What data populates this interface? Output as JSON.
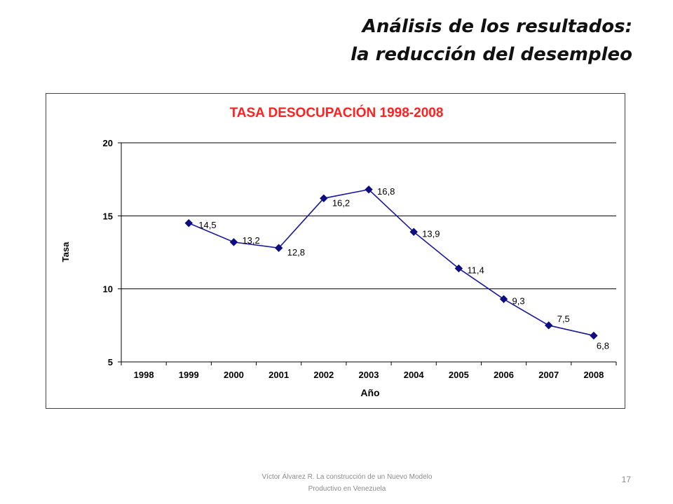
{
  "slide": {
    "title_line1": "Análisis de los resultados:",
    "title_line2": "la reducción del desempleo",
    "footer_line1": "Víctor Álvarez R. La construcción de un Nuevo Modelo",
    "footer_line2": "Productivo en Venezuela",
    "page_number": "17"
  },
  "chart_data": {
    "type": "line",
    "title": "TASA DESOCUPACIÓN 1998-2008",
    "xlabel": "Año",
    "ylabel": "Tasa",
    "categories": [
      "1998",
      "1999",
      "2000",
      "2001",
      "2002",
      "2003",
      "2004",
      "2005",
      "2006",
      "2007",
      "2008"
    ],
    "series": [
      {
        "values": [
          null,
          14.5,
          13.2,
          12.8,
          16.2,
          16.8,
          13.9,
          11.4,
          9.3,
          7.5,
          6.8
        ],
        "labels": [
          "",
          "14,5",
          "13,2",
          "12,8",
          "16,2",
          "16,8",
          "13,9",
          "11,4",
          "9,3",
          "7,5",
          "6,8"
        ]
      }
    ],
    "ylim": [
      5,
      20
    ],
    "yticks": [
      5,
      10,
      15,
      20
    ],
    "grid": true,
    "colors": {
      "line": "#1a1a9a",
      "marker": "#0d0d80",
      "title": "#ff2020",
      "axis": "#000000"
    }
  }
}
